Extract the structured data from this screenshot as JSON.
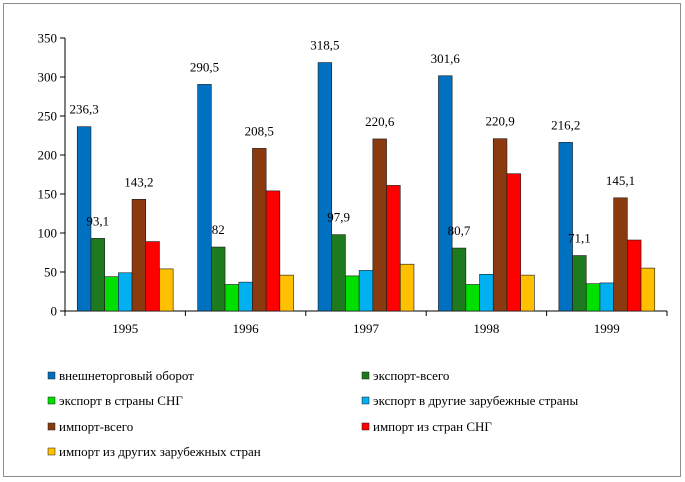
{
  "chart_data": {
    "type": "bar",
    "title": "",
    "xlabel": "",
    "ylabel": "",
    "ylim": [
      0,
      350
    ],
    "yticks": [
      0,
      50,
      100,
      150,
      200,
      250,
      300,
      350
    ],
    "categories": [
      "1995",
      "1996",
      "1997",
      "1998",
      "1999"
    ],
    "legend_position": "bottom",
    "series": [
      {
        "name": "внешнеторговый оборот",
        "color": "#0070C0",
        "values": [
          236.3,
          290.5,
          318.5,
          301.6,
          216.2
        ],
        "labels": [
          "236,3",
          "290,5",
          "318,5",
          "301,6",
          "216,2"
        ]
      },
      {
        "name": "экспорт-всего",
        "color": "#1E7A1E",
        "values": [
          93.1,
          82,
          97.9,
          80.7,
          71.1
        ],
        "labels": [
          "93,1",
          "82",
          "97,9",
          "80,7",
          "71,1"
        ]
      },
      {
        "name": "экспорт в страны СНГ",
        "color": "#00E000",
        "values": [
          44,
          34,
          45,
          34,
          35
        ],
        "labels": [
          null,
          null,
          null,
          null,
          null
        ]
      },
      {
        "name": "экспорт в другие зарубежные страны",
        "color": "#00B0F0",
        "values": [
          49,
          37,
          52,
          47,
          36
        ],
        "labels": [
          null,
          null,
          null,
          null,
          null
        ]
      },
      {
        "name": "импорт-всего",
        "color": "#8B3A0F",
        "values": [
          143.2,
          208.5,
          220.6,
          220.9,
          145.1
        ],
        "labels": [
          "143,2",
          "208,5",
          "220,6",
          "220,9",
          "145,1"
        ]
      },
      {
        "name": "импорт из стран СНГ",
        "color": "#FF0000",
        "values": [
          89,
          154,
          161,
          176,
          91
        ],
        "labels": [
          null,
          null,
          null,
          null,
          null
        ]
      },
      {
        "name": "импорт из других зарубежных стран",
        "color": "#FFC000",
        "values": [
          54,
          46,
          60,
          46,
          55
        ],
        "labels": [
          null,
          null,
          null,
          null,
          null
        ]
      }
    ]
  }
}
